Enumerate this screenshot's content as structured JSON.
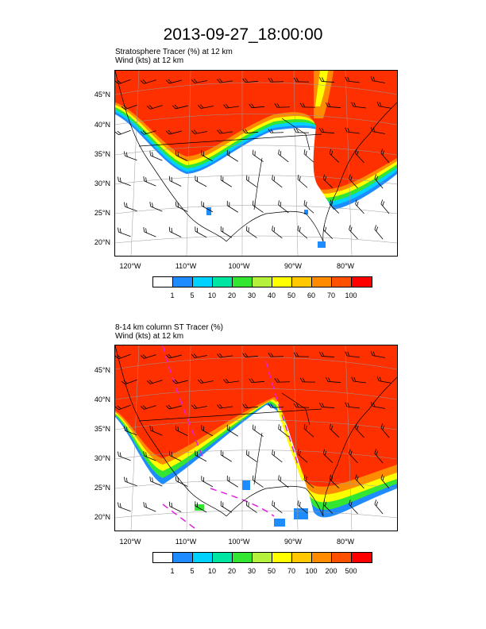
{
  "title": "2013-09-27_18:00:00",
  "panels": [
    {
      "subtitle_line1": "Stratosphere Tracer   (%)     at   12 km",
      "subtitle_line2": "Wind   (kts)     at   12 km",
      "lat_labels": [
        "45°N",
        "40°N",
        "35°N",
        "30°N",
        "25°N",
        "20°N"
      ],
      "lon_labels": [
        "120°W",
        "110°W",
        "100°W",
        "90°W",
        "80°W"
      ],
      "colorbar_labels": [
        "1",
        "5",
        "10",
        "20",
        "30",
        "40",
        "50",
        "60",
        "70",
        "100"
      ],
      "colorbar_colors": [
        "#ffffff",
        "#1e8cff",
        "#00d2ff",
        "#00e6a0",
        "#32e632",
        "#b4f03c",
        "#ffff00",
        "#ffc800",
        "#ff8c00",
        "#ff5000",
        "#ff0000"
      ]
    },
    {
      "subtitle_line1": "8-14 km column ST Tracer   (%)",
      "subtitle_line2": "Wind   (kts)     at   12 km",
      "lat_labels": [
        "45°N",
        "40°N",
        "35°N",
        "30°N",
        "25°N",
        "20°N"
      ],
      "lon_labels": [
        "120°W",
        "110°W",
        "100°W",
        "90°W",
        "80°W"
      ],
      "colorbar_labels": [
        "1",
        "5",
        "10",
        "20",
        "30",
        "50",
        "70",
        "100",
        "200",
        "500"
      ],
      "colorbar_colors": [
        "#ffffff",
        "#1e8cff",
        "#00d2ff",
        "#00e6a0",
        "#32e632",
        "#b4f03c",
        "#ffff00",
        "#ffc800",
        "#ff8c00",
        "#ff5000",
        "#ff0000"
      ]
    }
  ]
}
